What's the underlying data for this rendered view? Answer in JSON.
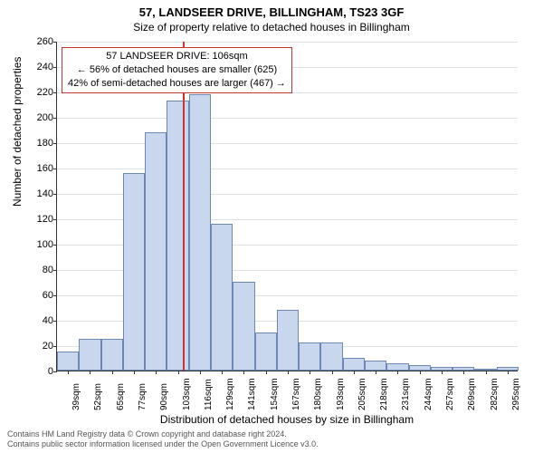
{
  "title": "57, LANDSEER DRIVE, BILLINGHAM, TS23 3GF",
  "subtitle": "Size of property relative to detached houses in Billingham",
  "xlabel": "Distribution of detached houses by size in Billingham",
  "ylabel": "Number of detached properties",
  "footer_line1": "Contains HM Land Registry data © Crown copyright and database right 2024.",
  "footer_line2": "Contains public sector information licensed under the Open Government Licence v3.0.",
  "info_box": {
    "line1": "57 LANDSEER DRIVE: 106sqm",
    "line2": "← 56% of detached houses are smaller (625)",
    "line3": "42% of semi-detached houses are larger (467) →"
  },
  "chart": {
    "type": "histogram",
    "ylim": [
      0,
      260
    ],
    "ytick_step": 20,
    "bar_fill": "#c8d6ee",
    "bar_stroke": "#6d89b3",
    "grid_color": "#c7cbd2",
    "background_color": "#ffffff",
    "highlight_color": "#cc3333",
    "highlight_x_value": 106,
    "x_start": 33,
    "x_step": 12.75,
    "bar_count": 21,
    "x_labels": [
      "39sqm",
      "52sqm",
      "65sqm",
      "77sqm",
      "90sqm",
      "103sqm",
      "116sqm",
      "129sqm",
      "141sqm",
      "154sqm",
      "167sqm",
      "180sqm",
      "193sqm",
      "205sqm",
      "218sqm",
      "231sqm",
      "244sqm",
      "257sqm",
      "269sqm",
      "282sqm",
      "295sqm"
    ],
    "values": [
      15,
      25,
      25,
      156,
      188,
      213,
      218,
      116,
      70,
      30,
      48,
      22,
      22,
      10,
      8,
      6,
      4,
      3,
      3,
      0,
      3
    ]
  },
  "fonts": {
    "title_size": 13,
    "subtitle_size": 12,
    "axis_label_size": 12,
    "tick_size": 11
  }
}
